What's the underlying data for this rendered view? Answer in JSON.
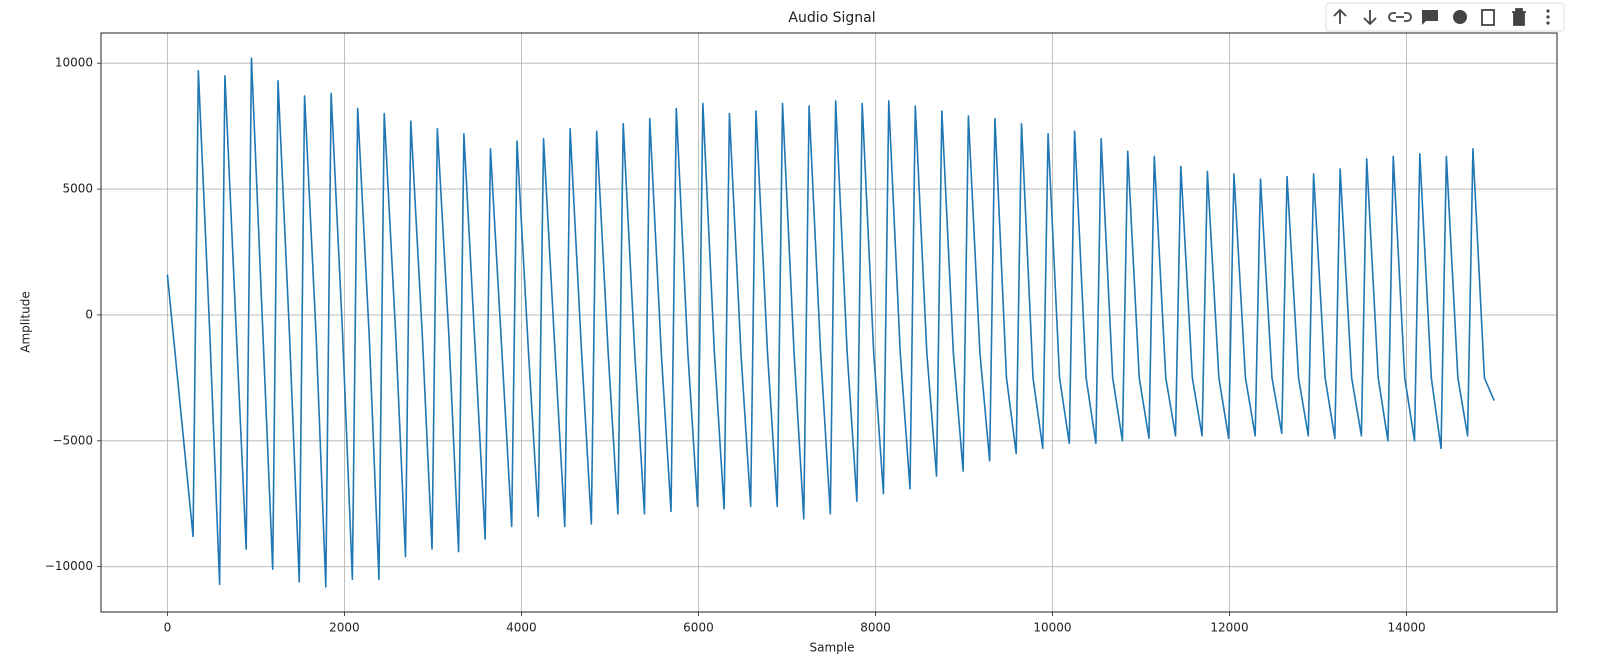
{
  "chart_data": {
    "type": "line",
    "title": "Audio Signal",
    "x_label": "Sample",
    "y_label": "Amplitude",
    "x": [
      0,
      290,
      350,
      480,
      590,
      650,
      780,
      890,
      950,
      1080,
      1190,
      1250,
      1380,
      1490,
      1550,
      1680,
      1790,
      1850,
      1980,
      2090,
      2150,
      2280,
      2390,
      2450,
      2580,
      2690,
      2750,
      2880,
      2990,
      3050,
      3180,
      3290,
      3350,
      3480,
      3590,
      3650,
      3780,
      3890,
      3950,
      4080,
      4190,
      4250,
      4380,
      4490,
      4550,
      4680,
      4790,
      4850,
      4980,
      5090,
      5150,
      5280,
      5390,
      5450,
      5580,
      5690,
      5750,
      5880,
      5990,
      6050,
      6180,
      6290,
      6350,
      6480,
      6590,
      6650,
      6780,
      6890,
      6950,
      7080,
      7190,
      7250,
      7380,
      7490,
      7550,
      7680,
      7790,
      7850,
      7980,
      8090,
      8150,
      8280,
      8390,
      8450,
      8580,
      8690,
      8750,
      8880,
      8990,
      9050,
      9180,
      9290,
      9350,
      9480,
      9590,
      9650,
      9780,
      9890,
      9950,
      10080,
      10190,
      10250,
      10380,
      10490,
      10550,
      10680,
      10790,
      10850,
      10980,
      11090,
      11150,
      11280,
      11390,
      11450,
      11580,
      11690,
      11750,
      11880,
      11990,
      12050,
      12180,
      12290,
      12350,
      12480,
      12590,
      12650,
      12780,
      12890,
      12950,
      13080,
      13190,
      13250,
      13380,
      13490,
      13550,
      13680,
      13790,
      13850,
      13980,
      14090,
      14150,
      14280,
      14390,
      14450,
      14580,
      14690,
      14750,
      14880,
      14990
    ],
    "series": [
      {
        "name": "Audio Signal",
        "color": "#1f77b4",
        "values": [
          1600,
          -8800,
          9700,
          -800,
          -10700,
          9500,
          -800,
          -9300,
          10200,
          -800,
          -10100,
          9300,
          -800,
          -10600,
          8700,
          -800,
          -10800,
          8800,
          -800,
          -10500,
          8200,
          -800,
          -10500,
          8000,
          -800,
          -9600,
          7700,
          -800,
          -9300,
          7400,
          -800,
          -9400,
          7200,
          -1500,
          -8900,
          6600,
          -1500,
          -8400,
          6900,
          -1500,
          -8000,
          7000,
          -1500,
          -8400,
          7400,
          -1500,
          -8300,
          7300,
          -1500,
          -7900,
          7600,
          -1500,
          -7900,
          7800,
          -1500,
          -7800,
          8200,
          -1500,
          -7600,
          8400,
          -1500,
          -7700,
          8000,
          -1500,
          -7600,
          8100,
          -1500,
          -7600,
          8400,
          -1500,
          -8100,
          8300,
          -1500,
          -7900,
          8500,
          -1500,
          -7400,
          8400,
          -1500,
          -7100,
          8500,
          -1500,
          -6900,
          8300,
          -1500,
          -6400,
          8100,
          -1500,
          -6200,
          7900,
          -1500,
          -5800,
          7800,
          -2500,
          -5500,
          7600,
          -2500,
          -5300,
          7200,
          -2500,
          -5100,
          7300,
          -2500,
          -5100,
          7000,
          -2500,
          -5000,
          6500,
          -2500,
          -4900,
          6300,
          -2500,
          -4800,
          5900,
          -2500,
          -4800,
          5700,
          -2500,
          -4900,
          5600,
          -2500,
          -4800,
          5400,
          -2500,
          -4700,
          5500,
          -2500,
          -4800,
          5600,
          -2500,
          -4900,
          5800,
          -2500,
          -4800,
          6200,
          -2500,
          -5000,
          6300,
          -2500,
          -5000,
          6400,
          -2500,
          -5300,
          6300,
          -2500,
          -4800,
          6600,
          -2500,
          -3400
        ]
      }
    ],
    "xlim": [
      -750,
      15700
    ],
    "ylim": [
      -11800,
      11200
    ],
    "xticks": [
      0,
      2000,
      4000,
      6000,
      8000,
      10000,
      12000,
      14000
    ],
    "yticks": [
      {
        "value": -10000,
        "label": "−10000"
      },
      {
        "value": -5000,
        "label": "−5000"
      },
      0,
      5000,
      10000
    ],
    "grid": true
  }
}
